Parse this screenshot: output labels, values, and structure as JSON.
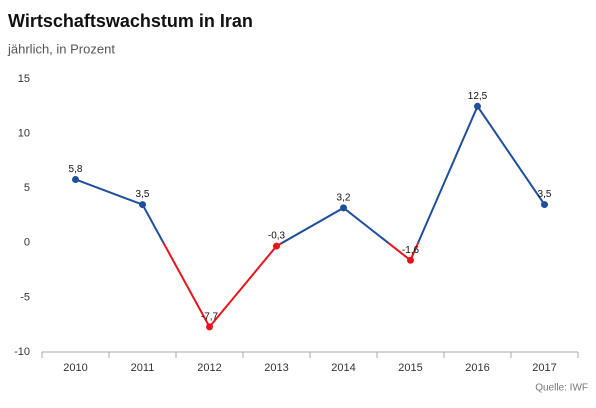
{
  "chart_data": {
    "type": "line",
    "title": "Wirtschaftswachstum in Iran",
    "subtitle": "jährlich, in Prozent",
    "source": "Quelle: IWF",
    "categories": [
      "2010",
      "2011",
      "2012",
      "2013",
      "2014",
      "2015",
      "2016",
      "2017"
    ],
    "values": [
      5.8,
      3.5,
      -7.7,
      -0.3,
      3.2,
      -1.6,
      12.5,
      3.5
    ],
    "value_labels": [
      "5,8",
      "3,5",
      "-7,7",
      "-0,3",
      "3,2",
      "-1,6",
      "12,5",
      "3,5"
    ],
    "color": "#1f4e9c",
    "negative_color": "#e8141b",
    "ylim": [
      -10,
      15
    ],
    "yticks": [
      -10,
      -5,
      0,
      5,
      10,
      15
    ],
    "grid": false
  }
}
